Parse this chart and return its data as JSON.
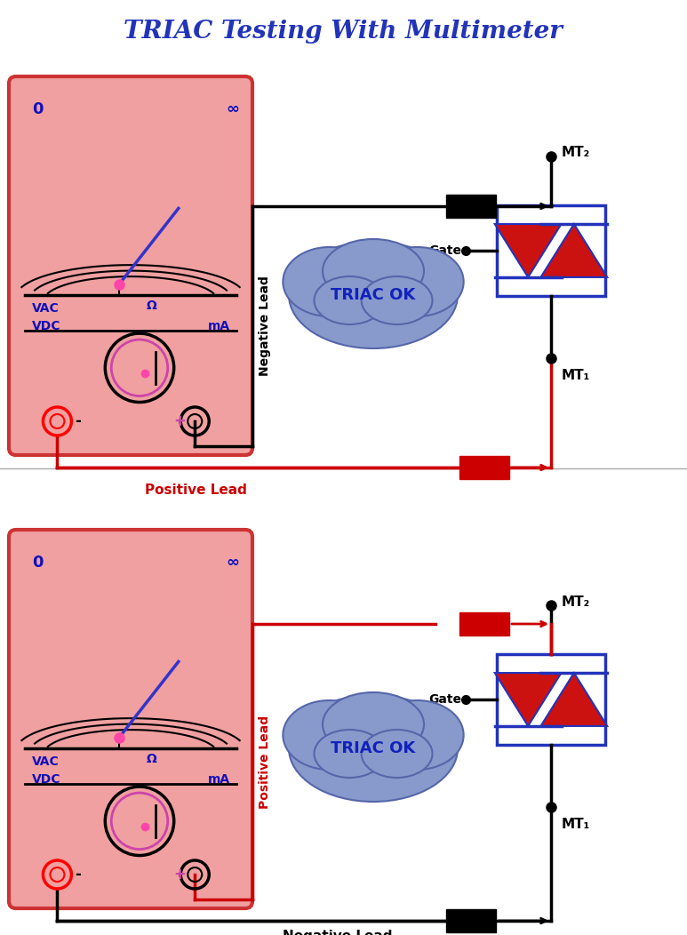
{
  "title": "TRIAC Testing With Multimeter",
  "title_color": "#2233BB",
  "title_fontsize": 20,
  "bg_color": "#FFFFFF",
  "meter_bg": "#F0A0A0",
  "meter_border": "#CC3333",
  "label_color": "#1111BB",
  "wire_black": "#000000",
  "wire_red": "#CC0000",
  "triac_fill": "#CC1111",
  "triac_border": "#2233BB",
  "cloud_fill": "#8899CC",
  "cloud_edge": "#5566AA",
  "cloud_text": "TRIAC OK",
  "cloud_text_color": "#1122BB",
  "mt2_label": "MT₂",
  "mt1_label": "MT₁",
  "gate_label": "Gate",
  "neg_lead_label": "Negative Lead",
  "pos_lead_label": "Positive Lead",
  "top_lead_label": "Positive Lead",
  "top_lead_color": "#CC0000",
  "bot_lead_label": "Negative Lead",
  "bot_lead_color": "#000000",
  "top_vert_label": "Negative Lead",
  "top_vert_color": "#000000",
  "bot_vert_label": "Positive Lead",
  "bot_vert_color": "#CC0000"
}
